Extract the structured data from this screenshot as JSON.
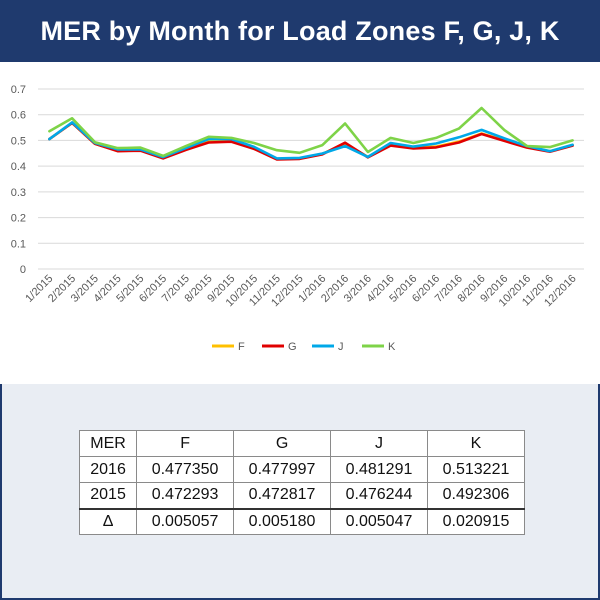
{
  "title": "MER by Month for Load Zones F, G, J, K",
  "chart_data": {
    "type": "line",
    "categories": [
      "1/2015",
      "2/2015",
      "3/2015",
      "4/2015",
      "5/2015",
      "6/2015",
      "7/2015",
      "8/2015",
      "9/2015",
      "10/2015",
      "11/2015",
      "12/2015",
      "1/2016",
      "2/2016",
      "3/2016",
      "4/2016",
      "5/2016",
      "6/2016",
      "7/2016",
      "8/2016",
      "9/2016",
      "10/2016",
      "11/2016",
      "12/2016"
    ],
    "series": [
      {
        "name": "F",
        "color": "#ffc000",
        "values": [
          0.505,
          0.568,
          0.487,
          0.46,
          0.462,
          0.432,
          0.465,
          0.495,
          0.498,
          0.47,
          0.428,
          0.43,
          0.448,
          0.487,
          0.436,
          0.483,
          0.471,
          0.476,
          0.495,
          0.527,
          0.5,
          0.474,
          0.458,
          0.482
        ]
      },
      {
        "name": "G",
        "color": "#e00000",
        "values": [
          0.505,
          0.568,
          0.487,
          0.458,
          0.46,
          0.43,
          0.463,
          0.492,
          0.495,
          0.467,
          0.426,
          0.428,
          0.446,
          0.491,
          0.434,
          0.48,
          0.469,
          0.473,
          0.492,
          0.525,
          0.498,
          0.472,
          0.456,
          0.48
        ]
      },
      {
        "name": "J",
        "color": "#00a8e8",
        "values": [
          0.505,
          0.57,
          0.49,
          0.465,
          0.465,
          0.435,
          0.47,
          0.505,
          0.505,
          0.475,
          0.43,
          0.432,
          0.449,
          0.478,
          0.436,
          0.49,
          0.476,
          0.488,
          0.512,
          0.541,
          0.508,
          0.478,
          0.458,
          0.483
        ]
      },
      {
        "name": "K",
        "color": "#7ed348",
        "values": [
          0.536,
          0.586,
          0.493,
          0.47,
          0.472,
          0.44,
          0.478,
          0.514,
          0.51,
          0.49,
          0.462,
          0.452,
          0.482,
          0.566,
          0.455,
          0.51,
          0.49,
          0.51,
          0.546,
          0.626,
          0.54,
          0.478,
          0.474,
          0.5
        ]
      }
    ],
    "yticks": [
      "0",
      "0.1",
      "0.2",
      "0.3",
      "0.4",
      "0.5",
      "0.6",
      "0.7"
    ],
    "ylim": [
      0,
      0.7
    ],
    "legend": "bottom",
    "grid": true
  },
  "table": {
    "headers": [
      "MER",
      "F",
      "G",
      "J",
      "K"
    ],
    "rows": [
      [
        "2016",
        "0.477350",
        "0.477997",
        "0.481291",
        "0.513221"
      ],
      [
        "2015",
        "0.472293",
        "0.472817",
        "0.476244",
        "0.492306"
      ],
      [
        "Δ",
        "0.005057",
        "0.005180",
        "0.005047",
        "0.020915"
      ]
    ]
  }
}
